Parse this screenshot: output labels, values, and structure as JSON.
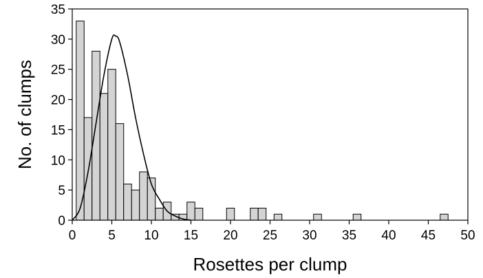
{
  "chart_data": {
    "type": "bar",
    "title": "",
    "xlabel": "Rosettes per clump",
    "ylabel": "No. of clumps",
    "xlim": [
      0,
      50
    ],
    "ylim": [
      0,
      35
    ],
    "xticks": [
      0,
      5,
      10,
      15,
      20,
      25,
      30,
      35,
      40,
      45,
      50
    ],
    "yticks": [
      0,
      5,
      10,
      15,
      20,
      25,
      30,
      35
    ],
    "grid": false,
    "legend": "none",
    "bar_fill": "#d4d4d4",
    "bars": {
      "x": [
        1,
        2,
        3,
        4,
        5,
        6,
        7,
        8,
        9,
        10,
        11,
        12,
        13,
        14,
        15,
        16,
        20,
        23,
        24,
        26,
        31,
        36,
        47
      ],
      "values": [
        33,
        17,
        28,
        21,
        25,
        16,
        6,
        5,
        8,
        7,
        2,
        3,
        1,
        1,
        3,
        2,
        2,
        2,
        2,
        1,
        1,
        1,
        1
      ]
    },
    "curve": {
      "x": [
        0,
        1,
        2,
        3,
        4,
        5,
        5.5,
        6,
        7,
        8,
        9,
        10,
        11,
        12,
        13,
        14,
        15
      ],
      "y": [
        0,
        2,
        8,
        16,
        24,
        30,
        30.5,
        29.5,
        24,
        17,
        11,
        6,
        3.5,
        1.5,
        0.7,
        0.2,
        0
      ]
    }
  }
}
